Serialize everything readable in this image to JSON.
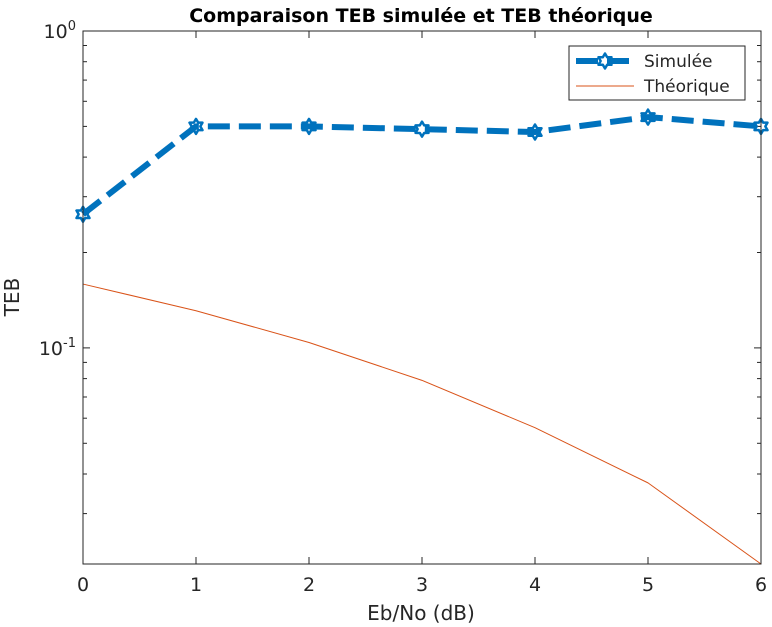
{
  "chart_data": {
    "type": "line",
    "title": "Comparaison TEB simulée et TEB théorique",
    "xlabel": "Eb/No (dB)",
    "ylabel": "TEB",
    "xlim": [
      0,
      6
    ],
    "ylim": [
      0.0208,
      1
    ],
    "yscale": "log",
    "x_ticks": [
      "0",
      "1",
      "2",
      "3",
      "4",
      "5",
      "6"
    ],
    "y_ticks": [
      {
        "value": 1,
        "base": "10",
        "exp": "0"
      },
      {
        "value": 0.1,
        "base": "10",
        "exp": "-1"
      }
    ],
    "grid": false,
    "legend_position": "top-right",
    "x": [
      0,
      1,
      2,
      3,
      4,
      5,
      6
    ],
    "series": [
      {
        "name": "Simulée",
        "values": [
          0.264,
          0.5,
          0.5,
          0.49,
          0.48,
          0.535,
          0.5
        ],
        "color": "#0072BD",
        "style": "dashed",
        "marker": "hexagram"
      },
      {
        "name": "Théorique",
        "values": [
          0.159,
          0.131,
          0.104,
          0.079,
          0.056,
          0.0375,
          0.0208
        ],
        "color": "#D95319",
        "style": "solid",
        "marker": "none"
      }
    ]
  }
}
